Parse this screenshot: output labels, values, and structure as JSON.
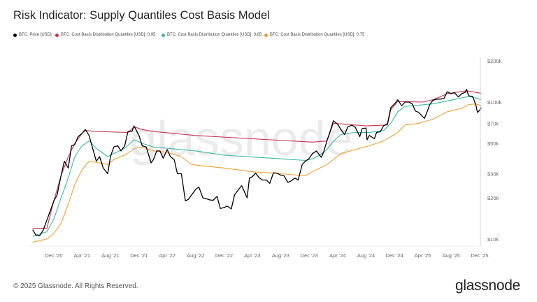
{
  "title": "Risk Indicator: Supply Quantiles Cost Basis Model",
  "footer": {
    "copyright": "© 2025 Glassnode. All Rights Reserved.",
    "logo": "glassnode"
  },
  "watermark": "glassnode",
  "chart_data": {
    "type": "line",
    "title": "Risk Indicator: Supply Quantiles Cost Basis Model",
    "y_scale": "log",
    "ylim": [
      9000,
      210000
    ],
    "grid": false,
    "legend_position": "top-left",
    "y_ticks": [
      {
        "v": 200000,
        "label": "$200k"
      },
      {
        "v": 100000,
        "label": "$100k"
      },
      {
        "v": 70000,
        "label": "$70k"
      },
      {
        "v": 50000,
        "label": "$50k"
      },
      {
        "v": 30000,
        "label": "$30k"
      },
      {
        "v": 20000,
        "label": "$20k"
      },
      {
        "v": 10000,
        "label": "$10k"
      }
    ],
    "x_ticks": [
      {
        "d": "2020-12-01",
        "label": "Dec '20"
      },
      {
        "d": "2021-04-01",
        "label": "Apr '21"
      },
      {
        "d": "2021-08-01",
        "label": "Aug '21"
      },
      {
        "d": "2021-12-01",
        "label": "Dec '21"
      },
      {
        "d": "2022-04-01",
        "label": "Apr '22"
      },
      {
        "d": "2022-08-01",
        "label": "Aug '22"
      },
      {
        "d": "2022-12-01",
        "label": "Dec '22"
      },
      {
        "d": "2023-04-01",
        "label": "Apr '23"
      },
      {
        "d": "2023-08-01",
        "label": "Aug '23"
      },
      {
        "d": "2023-12-01",
        "label": "Dec '23"
      },
      {
        "d": "2024-04-01",
        "label": "Apr '24"
      },
      {
        "d": "2024-08-01",
        "label": "Aug '24"
      },
      {
        "d": "2024-12-01",
        "label": "Dec '24"
      },
      {
        "d": "2025-04-01",
        "label": "Apr '25"
      },
      {
        "d": "2025-08-01",
        "label": "Aug '25"
      },
      {
        "d": "2025-12-01",
        "label": "Dec '25"
      }
    ],
    "series": [
      {
        "name": "BTC: Price [USD]",
        "color": "#000000",
        "width": 1.3,
        "points": [
          [
            "2020-09-01",
            11700
          ],
          [
            "2020-09-15",
            10700
          ],
          [
            "2020-10-01",
            10600
          ],
          [
            "2020-10-15",
            11500
          ],
          [
            "2020-11-01",
            13700
          ],
          [
            "2020-11-15",
            16000
          ],
          [
            "2020-12-01",
            19000
          ],
          [
            "2020-12-15",
            21000
          ],
          [
            "2021-01-01",
            29000
          ],
          [
            "2021-01-15",
            37000
          ],
          [
            "2021-02-01",
            33000
          ],
          [
            "2021-02-15",
            48000
          ],
          [
            "2021-03-01",
            49000
          ],
          [
            "2021-03-15",
            56000
          ],
          [
            "2021-04-01",
            59000
          ],
          [
            "2021-04-15",
            63000
          ],
          [
            "2021-05-01",
            57000
          ],
          [
            "2021-05-15",
            47000
          ],
          [
            "2021-06-01",
            37000
          ],
          [
            "2021-06-15",
            40000
          ],
          [
            "2021-07-01",
            33000
          ],
          [
            "2021-07-20",
            30000
          ],
          [
            "2021-08-01",
            40000
          ],
          [
            "2021-08-15",
            47000
          ],
          [
            "2021-09-01",
            48000
          ],
          [
            "2021-09-15",
            44000
          ],
          [
            "2021-10-01",
            48000
          ],
          [
            "2021-10-15",
            61000
          ],
          [
            "2021-11-01",
            61000
          ],
          [
            "2021-11-10",
            67000
          ],
          [
            "2021-12-01",
            57000
          ],
          [
            "2021-12-15",
            48000
          ],
          [
            "2022-01-01",
            47000
          ],
          [
            "2022-01-22",
            36000
          ],
          [
            "2022-02-01",
            38000
          ],
          [
            "2022-02-15",
            44000
          ],
          [
            "2022-03-01",
            44000
          ],
          [
            "2022-03-15",
            39000
          ],
          [
            "2022-04-01",
            45000
          ],
          [
            "2022-04-15",
            40000
          ],
          [
            "2022-05-01",
            38000
          ],
          [
            "2022-05-15",
            30000
          ],
          [
            "2022-06-01",
            30000
          ],
          [
            "2022-06-18",
            19000
          ],
          [
            "2022-07-01",
            19500
          ],
          [
            "2022-07-15",
            21000
          ],
          [
            "2022-08-01",
            23000
          ],
          [
            "2022-08-15",
            24000
          ],
          [
            "2022-09-01",
            20000
          ],
          [
            "2022-09-15",
            19700
          ],
          [
            "2022-10-01",
            19300
          ],
          [
            "2022-10-15",
            19200
          ],
          [
            "2022-11-01",
            20500
          ],
          [
            "2022-11-15",
            16700
          ],
          [
            "2022-12-01",
            17000
          ],
          [
            "2022-12-15",
            17400
          ],
          [
            "2023-01-01",
            16600
          ],
          [
            "2023-01-15",
            21000
          ],
          [
            "2023-02-01",
            23000
          ],
          [
            "2023-02-15",
            24500
          ],
          [
            "2023-03-10",
            20000
          ],
          [
            "2023-03-20",
            28000
          ],
          [
            "2023-04-01",
            28500
          ],
          [
            "2023-04-15",
            30300
          ],
          [
            "2023-05-01",
            28000
          ],
          [
            "2023-05-15",
            27000
          ],
          [
            "2023-06-01",
            27000
          ],
          [
            "2023-06-15",
            25500
          ],
          [
            "2023-07-01",
            30500
          ],
          [
            "2023-07-15",
            30300
          ],
          [
            "2023-08-01",
            29300
          ],
          [
            "2023-08-15",
            29000
          ],
          [
            "2023-09-01",
            25900
          ],
          [
            "2023-09-15",
            26600
          ],
          [
            "2023-10-01",
            27900
          ],
          [
            "2023-10-15",
            27000
          ],
          [
            "2023-11-01",
            35000
          ],
          [
            "2023-11-15",
            37000
          ],
          [
            "2023-12-01",
            38700
          ],
          [
            "2023-12-15",
            42000
          ],
          [
            "2024-01-01",
            44000
          ],
          [
            "2024-01-22",
            39500
          ],
          [
            "2024-02-01",
            43000
          ],
          [
            "2024-02-15",
            52000
          ],
          [
            "2024-03-01",
            62000
          ],
          [
            "2024-03-14",
            73000
          ],
          [
            "2024-04-01",
            69000
          ],
          [
            "2024-04-15",
            63000
          ],
          [
            "2024-05-01",
            58000
          ],
          [
            "2024-05-15",
            66000
          ],
          [
            "2024-06-01",
            67700
          ],
          [
            "2024-06-15",
            66000
          ],
          [
            "2024-07-05",
            56000
          ],
          [
            "2024-07-15",
            64000
          ],
          [
            "2024-08-01",
            64600
          ],
          [
            "2024-08-05",
            53000
          ],
          [
            "2024-08-15",
            57000
          ],
          [
            "2024-09-06",
            54000
          ],
          [
            "2024-09-15",
            60000
          ],
          [
            "2024-10-01",
            60800
          ],
          [
            "2024-10-15",
            67000
          ],
          [
            "2024-11-01",
            69500
          ],
          [
            "2024-11-15",
            91000
          ],
          [
            "2024-12-01",
            97000
          ],
          [
            "2024-12-15",
            104000
          ],
          [
            "2025-01-01",
            94000
          ],
          [
            "2025-01-15",
            100000
          ],
          [
            "2025-02-01",
            100000
          ],
          [
            "2025-02-15",
            97000
          ],
          [
            "2025-03-01",
            86000
          ],
          [
            "2025-03-15",
            84000
          ],
          [
            "2025-04-08",
            76000
          ],
          [
            "2025-04-20",
            85000
          ],
          [
            "2025-05-01",
            96000
          ],
          [
            "2025-05-15",
            103000
          ],
          [
            "2025-06-01",
            105000
          ],
          [
            "2025-06-15",
            105000
          ],
          [
            "2025-07-01",
            106000
          ],
          [
            "2025-07-15",
            119000
          ],
          [
            "2025-08-01",
            115000
          ],
          [
            "2025-08-15",
            117000
          ],
          [
            "2025-09-01",
            109000
          ],
          [
            "2025-09-15",
            115000
          ],
          [
            "2025-10-01",
            118000
          ],
          [
            "2025-10-06",
            124000
          ],
          [
            "2025-10-15",
            111000
          ],
          [
            "2025-11-01",
            110000
          ],
          [
            "2025-11-15",
            95000
          ],
          [
            "2025-11-22",
            84000
          ],
          [
            "2025-12-01",
            87000
          ],
          [
            "2025-12-08",
            91000
          ]
        ]
      },
      {
        "name": "BTC: Cost Basis Distribution Quantiles [USD]: 0.95",
        "color": "#c8324f",
        "width": 1.1,
        "points": [
          [
            "2020-09-01",
            12000
          ],
          [
            "2020-11-01",
            12000
          ],
          [
            "2020-12-01",
            19000
          ],
          [
            "2021-01-01",
            29000
          ],
          [
            "2021-02-01",
            40000
          ],
          [
            "2021-03-01",
            50000
          ],
          [
            "2021-04-01",
            59000
          ],
          [
            "2021-04-15",
            62000
          ],
          [
            "2021-06-01",
            61000
          ],
          [
            "2021-10-15",
            60000
          ],
          [
            "2021-11-10",
            66000
          ],
          [
            "2021-12-15",
            63000
          ],
          [
            "2022-02-01",
            61000
          ],
          [
            "2022-08-01",
            57000
          ],
          [
            "2023-04-01",
            54000
          ],
          [
            "2023-12-15",
            51000
          ],
          [
            "2024-02-15",
            52000
          ],
          [
            "2024-03-14",
            70000
          ],
          [
            "2024-05-01",
            69000
          ],
          [
            "2024-08-01",
            67000
          ],
          [
            "2024-11-01",
            68000
          ],
          [
            "2024-11-15",
            88000
          ],
          [
            "2024-12-15",
            101000
          ],
          [
            "2025-04-01",
            100000
          ],
          [
            "2025-05-15",
            104000
          ],
          [
            "2025-07-15",
            115000
          ],
          [
            "2025-10-06",
            121000
          ],
          [
            "2025-12-08",
            116000
          ]
        ]
      },
      {
        "name": "BTC: Cost Basis Distribution Quantiles [USD]: 0.85",
        "color": "#3cb8a0",
        "width": 1.1,
        "points": [
          [
            "2020-09-01",
            10500
          ],
          [
            "2020-11-01",
            11300
          ],
          [
            "2020-12-01",
            14000
          ],
          [
            "2021-01-01",
            20000
          ],
          [
            "2021-02-01",
            28000
          ],
          [
            "2021-03-01",
            40000
          ],
          [
            "2021-04-01",
            48000
          ],
          [
            "2021-05-01",
            52000
          ],
          [
            "2021-06-01",
            46000
          ],
          [
            "2021-07-20",
            40000
          ],
          [
            "2021-08-15",
            42000
          ],
          [
            "2021-10-01",
            46000
          ],
          [
            "2021-11-10",
            53000
          ],
          [
            "2021-12-15",
            50000
          ],
          [
            "2022-02-01",
            47000
          ],
          [
            "2022-04-01",
            46000
          ],
          [
            "2022-08-01",
            44000
          ],
          [
            "2022-12-01",
            41000
          ],
          [
            "2023-08-01",
            38500
          ],
          [
            "2023-11-15",
            37500
          ],
          [
            "2023-12-15",
            38500
          ],
          [
            "2024-01-15",
            41000
          ],
          [
            "2024-02-15",
            45000
          ],
          [
            "2024-03-15",
            52000
          ],
          [
            "2024-04-15",
            58000
          ],
          [
            "2024-06-15",
            60000
          ],
          [
            "2024-08-15",
            60000
          ],
          [
            "2024-10-15",
            62000
          ],
          [
            "2024-11-15",
            70000
          ],
          [
            "2024-12-15",
            85000
          ],
          [
            "2025-01-15",
            93000
          ],
          [
            "2025-03-15",
            95000
          ],
          [
            "2025-05-15",
            97000
          ],
          [
            "2025-07-15",
            102000
          ],
          [
            "2025-09-15",
            107000
          ],
          [
            "2025-10-15",
            110000
          ],
          [
            "2025-11-15",
            107000
          ],
          [
            "2025-12-08",
            104000
          ]
        ]
      },
      {
        "name": "BTC: Cost Basis Distribution Quantiles [USD]: 0.75",
        "color": "#f0a030",
        "width": 1.1,
        "points": [
          [
            "2020-09-01",
            9500
          ],
          [
            "2020-11-01",
            10000
          ],
          [
            "2020-12-01",
            11000
          ],
          [
            "2021-01-01",
            13000
          ],
          [
            "2021-02-01",
            18000
          ],
          [
            "2021-03-01",
            25000
          ],
          [
            "2021-04-01",
            32000
          ],
          [
            "2021-05-01",
            37000
          ],
          [
            "2021-06-15",
            36000
          ],
          [
            "2021-07-20",
            35000
          ],
          [
            "2021-08-15",
            38000
          ],
          [
            "2021-10-01",
            41000
          ],
          [
            "2021-11-15",
            46000
          ],
          [
            "2021-12-15",
            47000
          ],
          [
            "2022-02-01",
            44000
          ],
          [
            "2022-04-01",
            43000
          ],
          [
            "2022-06-01",
            40000
          ],
          [
            "2022-07-15",
            35000
          ],
          [
            "2022-12-01",
            33000
          ],
          [
            "2023-04-01",
            31000
          ],
          [
            "2023-08-01",
            30000
          ],
          [
            "2023-11-15",
            29000
          ],
          [
            "2023-12-15",
            31000
          ],
          [
            "2024-02-15",
            35000
          ],
          [
            "2024-04-15",
            42000
          ],
          [
            "2024-06-15",
            45000
          ],
          [
            "2024-08-15",
            48000
          ],
          [
            "2024-10-15",
            52000
          ],
          [
            "2024-12-15",
            60000
          ],
          [
            "2025-01-15",
            68000
          ],
          [
            "2025-03-15",
            70000
          ],
          [
            "2025-05-15",
            75000
          ],
          [
            "2025-07-15",
            85000
          ],
          [
            "2025-09-15",
            90000
          ],
          [
            "2025-10-15",
            96000
          ],
          [
            "2025-11-15",
            97000
          ],
          [
            "2025-12-08",
            94000
          ]
        ]
      }
    ]
  }
}
